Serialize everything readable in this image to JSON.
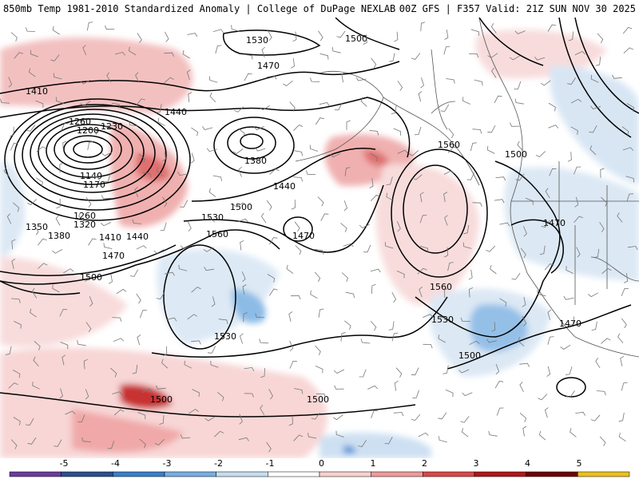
{
  "header": {
    "left_title": "850mb Temp 1981-2010 Standardized Anomaly | College of DuPage NEXLAB",
    "right_title": "00Z GFS | F357 Valid: 21Z SUN NOV 30 2025"
  },
  "colorbar": {
    "ticks": [
      "-5",
      "-4",
      "-3",
      "-2",
      "-1",
      "0",
      "1",
      "2",
      "3",
      "4",
      "5"
    ],
    "colors": [
      "#6a3d9a",
      "#2c4f8c",
      "#3a7fc8",
      "#78aee0",
      "#c6dcf0",
      "#ffffff",
      "#f7d0d0",
      "#ec9a9a",
      "#d84848",
      "#b01818",
      "#6e0000",
      "#e8c020"
    ]
  },
  "contour_labels": [
    {
      "text": "1530"
    },
    {
      "text": "1500"
    },
    {
      "text": "1470"
    },
    {
      "text": "1410"
    },
    {
      "text": "1440"
    },
    {
      "text": "1260"
    },
    {
      "text": "1200"
    },
    {
      "text": "1230"
    },
    {
      "text": "1380"
    },
    {
      "text": "1140"
    },
    {
      "text": "1170"
    },
    {
      "text": "1260"
    },
    {
      "text": "1320"
    },
    {
      "text": "1350"
    },
    {
      "text": "1380"
    },
    {
      "text": "1410"
    },
    {
      "text": "1440"
    },
    {
      "text": "1470"
    },
    {
      "text": "1500"
    },
    {
      "text": "1530"
    },
    {
      "text": "1500"
    },
    {
      "text": "1560"
    },
    {
      "text": "1440"
    },
    {
      "text": "1470"
    },
    {
      "text": "1560"
    },
    {
      "text": "1500"
    },
    {
      "text": "1560"
    },
    {
      "text": "1530"
    },
    {
      "text": "1470"
    },
    {
      "text": "1500"
    },
    {
      "text": "1530"
    },
    {
      "text": "1500"
    },
    {
      "text": "1500"
    },
    {
      "text": "1470"
    }
  ]
}
